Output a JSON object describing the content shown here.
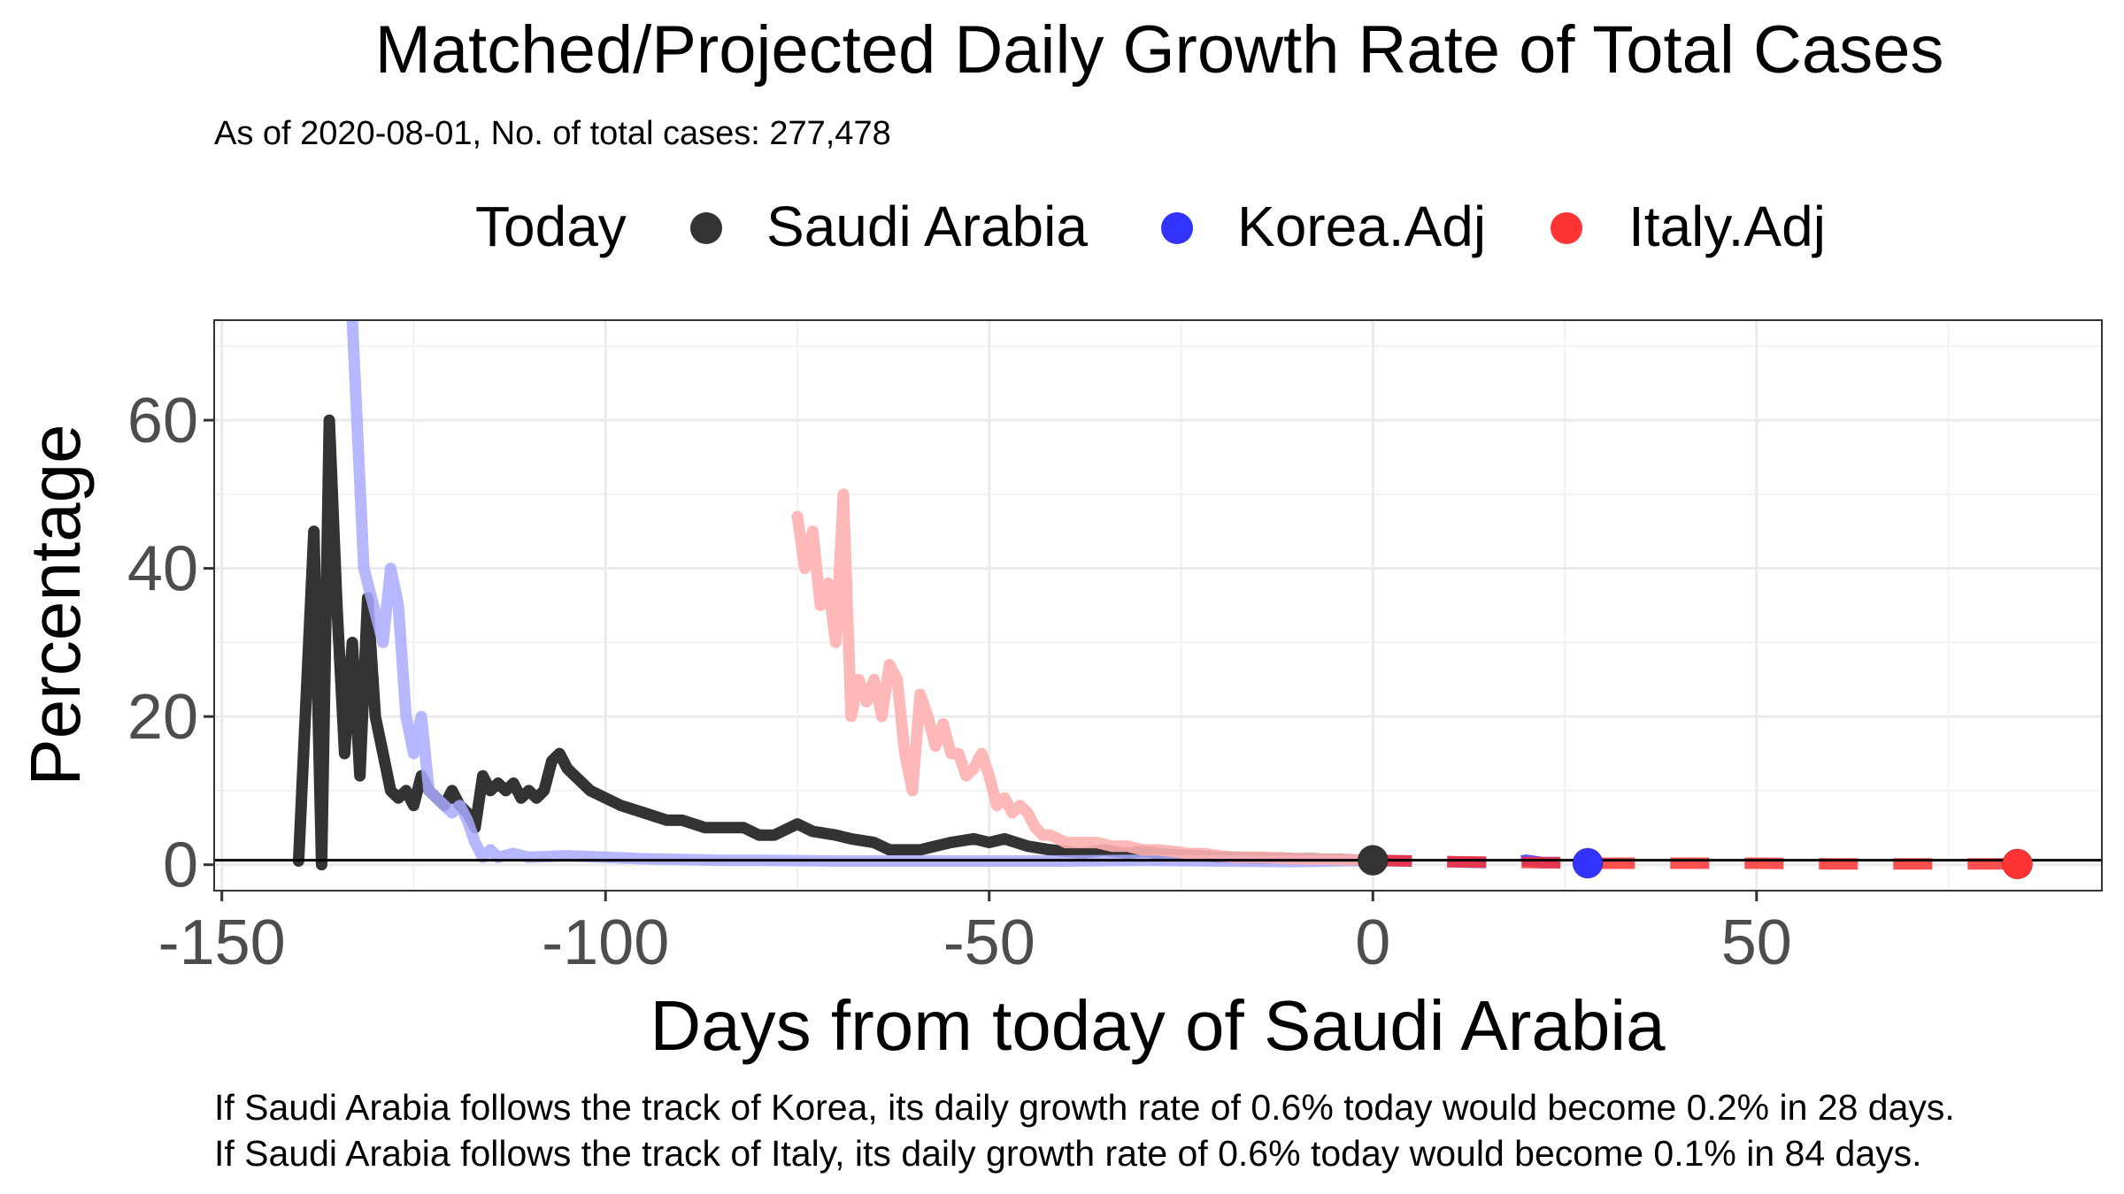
{
  "chart_data": {
    "type": "line",
    "title": "Matched/Projected Daily Growth Rate of Total Cases",
    "subtitle": "As of 2020-08-01, No. of total cases: 277,478",
    "xlabel": "Days from today of Saudi Arabia",
    "ylabel": "Percentage",
    "xlim": [
      -151,
      95
    ],
    "ylim": [
      -3.5,
      73.5
    ],
    "x_ticks": [
      -150,
      -100,
      -50,
      0,
      50
    ],
    "x_tick_labels": [
      "-150",
      "-100",
      "-50",
      "0",
      "50"
    ],
    "y_ticks": [
      0,
      20,
      40,
      60
    ],
    "y_tick_labels": [
      "0",
      "20",
      "40",
      "60"
    ],
    "grid": true,
    "legend": {
      "title": "Today",
      "position": "top",
      "items": [
        {
          "label": "Saudi Arabia",
          "color": "#333333"
        },
        {
          "label": "Korea.Adj",
          "color": "#3333ff"
        },
        {
          "label": "Italy.Adj",
          "color": "#ff3333"
        }
      ]
    },
    "reference_line_y": 0.6,
    "series": [
      {
        "name": "Saudi Arabia",
        "color": "#333333",
        "x": [
          -140,
          -138,
          -137,
          -136,
          -135,
          -134,
          -133,
          -132,
          -131,
          -130,
          -129,
          -128,
          -127,
          -126,
          -125,
          -124,
          -123,
          -122,
          -121,
          -120,
          -119,
          -118,
          -117,
          -116,
          -115,
          -114,
          -113,
          -112,
          -111,
          -110,
          -109,
          -108,
          -107,
          -106,
          -105,
          -104,
          -103,
          -102,
          -100,
          -98,
          -95,
          -92,
          -90,
          -87,
          -85,
          -82,
          -80,
          -78,
          -76,
          -75,
          -73,
          -70,
          -68,
          -65,
          -63,
          -61,
          -59,
          -57,
          -55,
          -52,
          -50,
          -48,
          -45,
          -42,
          -40,
          -38,
          -35,
          -32,
          -30,
          -28,
          -25,
          -22,
          -20,
          -18,
          -15,
          -12,
          -10,
          -8,
          -6,
          -4,
          -2,
          0
        ],
        "y": [
          0.5,
          45,
          0,
          60,
          35,
          15,
          30,
          12,
          36,
          20,
          15,
          10,
          9,
          10,
          8,
          12,
          10,
          9,
          8,
          10,
          8,
          7,
          5,
          12,
          10,
          11,
          10,
          11,
          9,
          10,
          9,
          10,
          14,
          15,
          13,
          12,
          11,
          10,
          9,
          8,
          7,
          6,
          6,
          5,
          5,
          5,
          4,
          4,
          5,
          5.5,
          4.5,
          4,
          3.5,
          3,
          2,
          2,
          2,
          2.5,
          3,
          3.5,
          3,
          3.5,
          2.5,
          2,
          1.8,
          1.5,
          2,
          1.5,
          1.8,
          1.5,
          1.3,
          1.2,
          1.0,
          1.0,
          0.9,
          0.9,
          0.8,
          0.8,
          0.7,
          0.7,
          0.6,
          0.6
        ]
      },
      {
        "name": "Korea.Adj",
        "color": "#3333ff",
        "x": [
          -133,
          -131.5,
          -131,
          -129,
          -128,
          -127,
          -126,
          -125,
          -124,
          -123,
          -122,
          -121,
          -120,
          -119,
          -118,
          -117,
          -116,
          -115,
          -114,
          -112,
          -110,
          -105,
          -100,
          -95,
          -90,
          -85,
          -80,
          -70,
          -60,
          -50,
          -40,
          -30,
          -20,
          -10,
          0,
          5,
          10,
          15,
          18,
          20,
          22,
          25,
          28
        ],
        "y": [
          73.5,
          40,
          38,
          30,
          40,
          35,
          20,
          15,
          20,
          10,
          9,
          8,
          7,
          8,
          6,
          3,
          1,
          2,
          1,
          1.5,
          1,
          1.2,
          1,
          0.8,
          0.7,
          0.6,
          0.6,
          0.5,
          0.5,
          0.5,
          0.5,
          0.6,
          0.5,
          0.4,
          0.6,
          0.5,
          0.4,
          0.3,
          0.3,
          0.6,
          0.3,
          0.3,
          0.2
        ]
      },
      {
        "name": "Italy.Adj",
        "color": "#ff3333",
        "x": [
          -75,
          -74,
          -73,
          -72,
          -71,
          -70,
          -69,
          -68,
          -67,
          -66,
          -65,
          -64,
          -63,
          -62,
          -61,
          -60,
          -59,
          -58,
          -57,
          -56,
          -55,
          -54,
          -53,
          -52,
          -51,
          -50,
          -49,
          -48,
          -47,
          -46,
          -45,
          -44,
          -43,
          -42,
          -40,
          -38,
          -36,
          -34,
          -32,
          -30,
          -28,
          -26,
          -24,
          -22,
          -20,
          -18,
          -15,
          -12,
          -10,
          -5,
          0,
          5,
          10,
          20,
          30,
          40,
          50,
          60,
          70,
          80,
          84
        ],
        "y": [
          47,
          40,
          45,
          35,
          38,
          30,
          50,
          20,
          25,
          22,
          25,
          20,
          27,
          25,
          15,
          10,
          23,
          20,
          16,
          19,
          15,
          15,
          12,
          13,
          15,
          12,
          8,
          9,
          7,
          8,
          7,
          5,
          4,
          4,
          3,
          3,
          3,
          2.5,
          2.5,
          2,
          2,
          1.8,
          1.5,
          1.5,
          1.2,
          1.0,
          1.0,
          0.9,
          0.8,
          0.7,
          0.6,
          0.5,
          0.4,
          0.3,
          0.2,
          0.2,
          0.2,
          0.1,
          0.1,
          0.1,
          0.1
        ]
      }
    ],
    "markers": [
      {
        "name": "Saudi Arabia",
        "x": 0,
        "y": 0.6,
        "color": "#333333"
      },
      {
        "name": "Korea.Adj",
        "x": 28,
        "y": 0.2,
        "color": "#3333ff"
      },
      {
        "name": "Italy.Adj",
        "x": 84,
        "y": 0.1,
        "color": "#ff3333"
      }
    ],
    "captions": [
      "If Saudi Arabia follows the track of Korea, its daily growth rate of 0.6% today would become 0.2% in 28 days.",
      "If Saudi Arabia follows the track of Italy, its daily growth rate of 0.6% today would become 0.1% in 84 days."
    ]
  }
}
